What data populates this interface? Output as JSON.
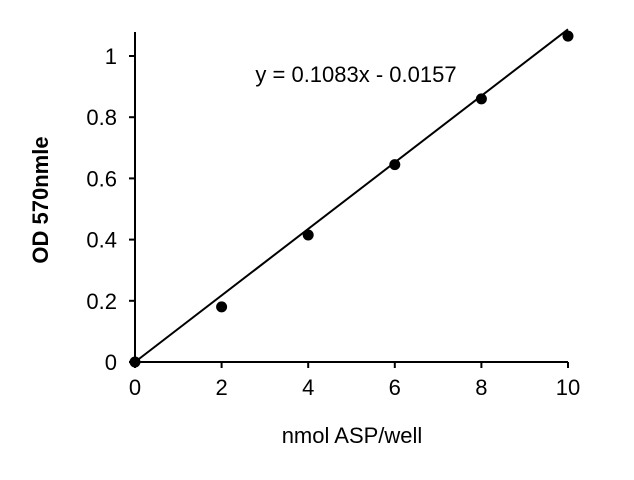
{
  "chart_data": {
    "type": "scatter",
    "xlabel": "nmol ASP/well",
    "ylabel": "OD 570nmle",
    "xlim": [
      0,
      10
    ],
    "ylim": [
      0,
      1.08
    ],
    "x_ticks": [
      0,
      2,
      4,
      6,
      8,
      10
    ],
    "y_ticks": [
      0,
      0.2,
      0.4,
      0.6,
      0.8,
      1
    ],
    "x_tick_labels": [
      "0",
      "2",
      "4",
      "6",
      "8",
      "10"
    ],
    "y_tick_labels": [
      "0",
      "0.2",
      "0.4",
      "0.6",
      "0.8",
      "1"
    ],
    "grid": false,
    "series": [
      {
        "x": [
          0,
          2,
          4,
          6,
          8,
          10
        ],
        "y": [
          0,
          0.18,
          0.415,
          0.645,
          0.86,
          1.065
        ],
        "color": "#000000"
      }
    ],
    "trendline": {
      "type": "linear",
      "slope": 0.1083,
      "intercept": -0.0157,
      "x_range": [
        0,
        10
      ],
      "color": "#000000",
      "equation_label": "y = 0.1083x - 0.0157"
    }
  }
}
